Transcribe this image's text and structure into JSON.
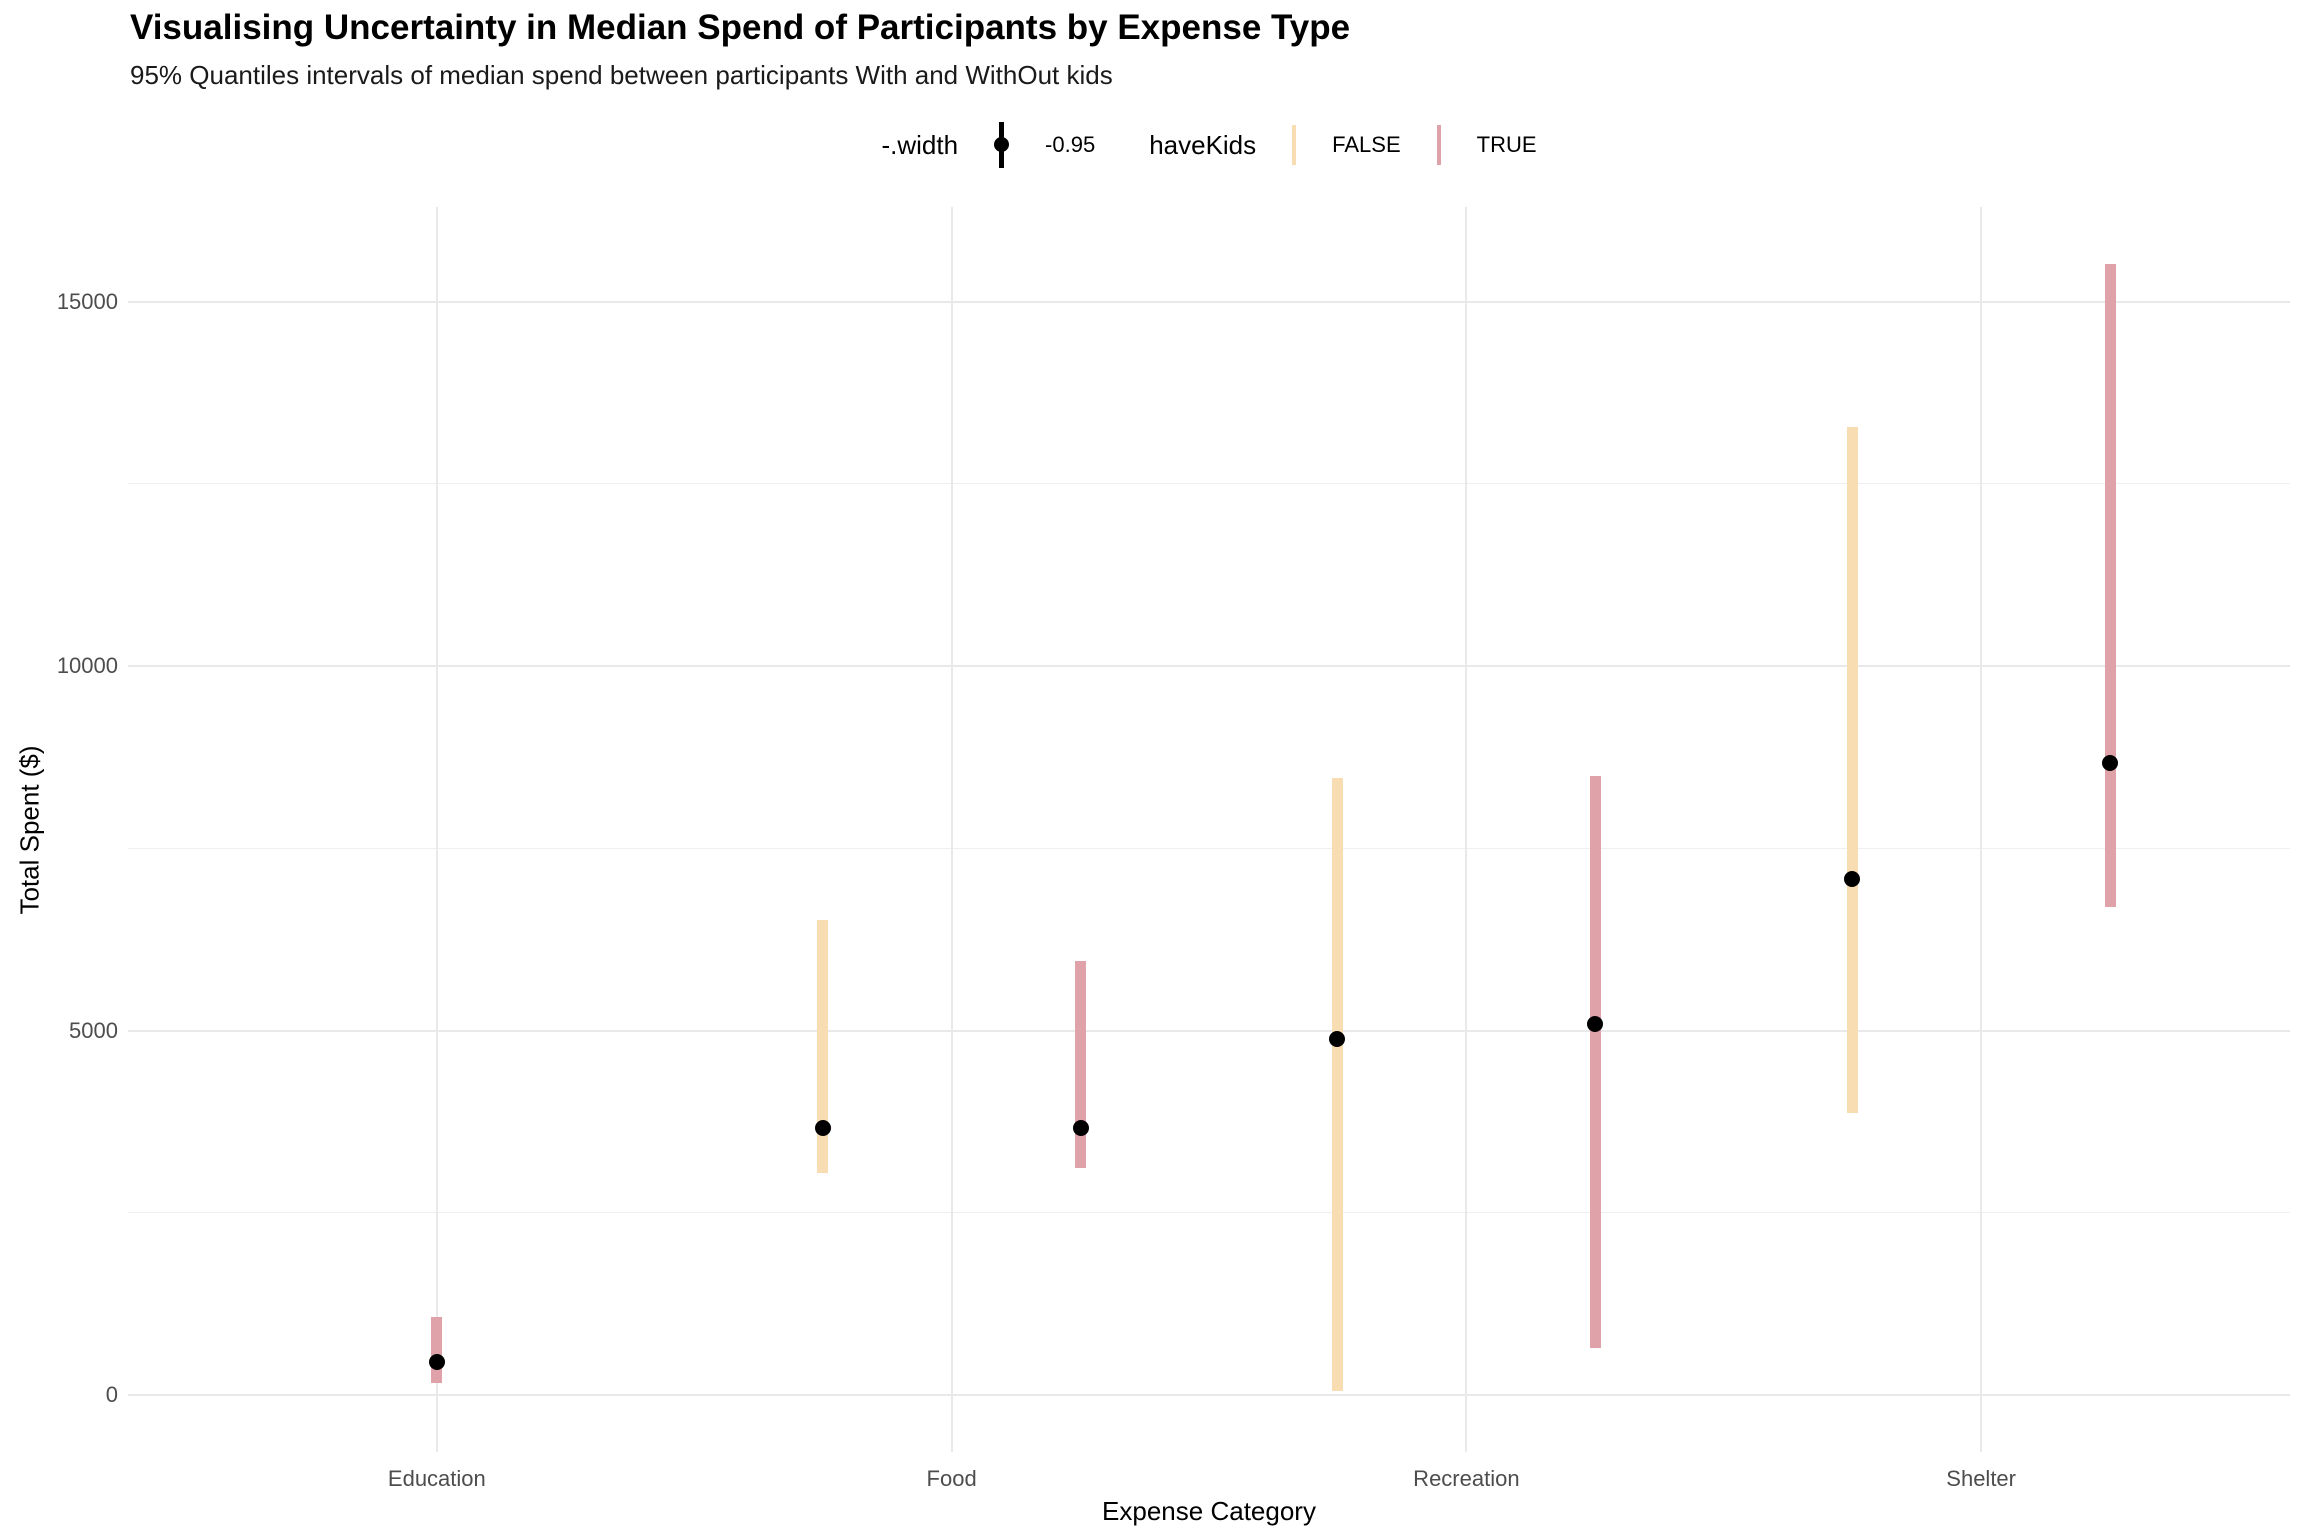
{
  "page": {
    "title": "Visualising Uncertainty in Median Spend of Participants by Expense Type",
    "subtitle": "95% Quantiles intervals of median spend between participants With and WithOut kids"
  },
  "legend": {
    "width": {
      "title": "-.width",
      "value": "-0.95"
    },
    "havekids": {
      "title": "haveKids",
      "items": [
        {
          "label": "FALSE",
          "color": "#f9ddb2"
        },
        {
          "label": "TRUE",
          "color": "#dfa2a8"
        }
      ]
    }
  },
  "chart_data": {
    "type": "pointinterval",
    "title": "Visualising Uncertainty in Median Spend of Participants by Expense Type",
    "subtitle": "95% Quantiles intervals of median spend between participants With and WithOut kids",
    "interval_width": 0.95,
    "grid": true,
    "legend_position": "top",
    "categories": [
      "Education",
      "Food",
      "Recreation",
      "Shelter"
    ],
    "series": [
      {
        "name": "FALSE",
        "color": "#f9ddb2",
        "points": [
          null,
          {
            "lower": 3050,
            "median": 3670,
            "upper": 6520
          },
          {
            "lower": 50,
            "median": 4890,
            "upper": 8460
          },
          {
            "lower": 3870,
            "median": 7080,
            "upper": 13280
          }
        ]
      },
      {
        "name": "TRUE",
        "color": "#dfa2a8",
        "points": [
          {
            "lower": 170,
            "median": 450,
            "upper": 1070
          },
          {
            "lower": 3120,
            "median": 3660,
            "upper": 5960
          },
          {
            "lower": 640,
            "median": 5090,
            "upper": 8490
          },
          {
            "lower": 6700,
            "median": 8670,
            "upper": 15520
          }
        ]
      }
    ],
    "x_axis": {
      "title": "Expense Category"
    },
    "y_axis": {
      "title": "Total Spent ($)",
      "ticks": [
        0,
        5000,
        10000,
        15000
      ],
      "minor_ticks": [
        2500,
        7500,
        12500
      ],
      "range": [
        -780,
        16300
      ]
    }
  }
}
